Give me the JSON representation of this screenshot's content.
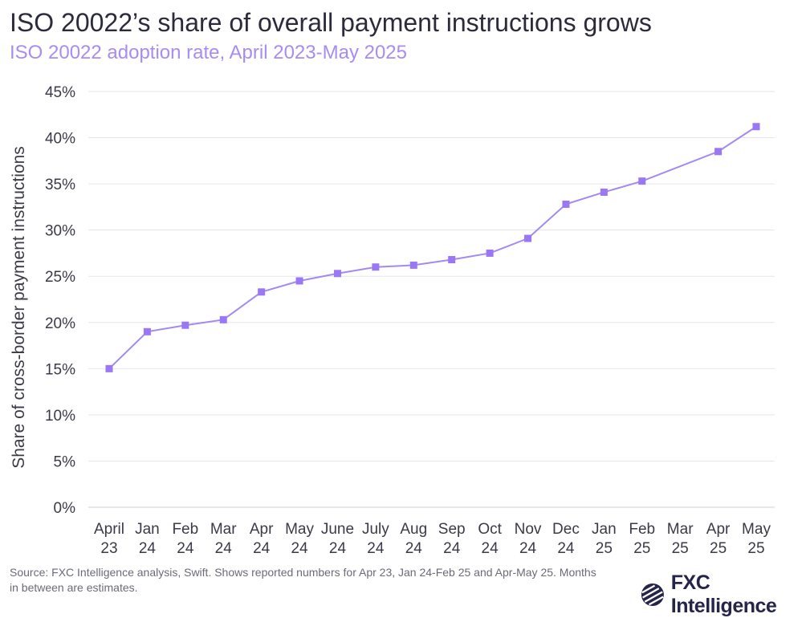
{
  "title": "ISO 20022’s share of overall payment instructions grows",
  "subtitle": "ISO 20022 adoption rate, April 2023-May 2025",
  "source": "Source: FXC Intelligence analysis, Swift. Shows reported numbers for Apr 23, Jan 24-Feb 25 and Apr-May 25. Months in between are estimates.",
  "logo": {
    "text": "FXC Intelligence",
    "icon": "fxc-globe-logo-icon"
  },
  "colors": {
    "line": "#a48af0",
    "marker": "#9a77f5",
    "grid": "#e6e6ea",
    "text": "#3a3a48"
  },
  "chart_data": {
    "type": "line",
    "ylabel": "Share of cross-border payment instructions",
    "xlabel": "",
    "ylim": [
      0,
      45
    ],
    "yticks": [
      "0%",
      "5%",
      "10%",
      "15%",
      "20%",
      "25%",
      "30%",
      "35%",
      "40%",
      "45%"
    ],
    "ytick_values": [
      0,
      5,
      10,
      15,
      20,
      25,
      30,
      35,
      40,
      45
    ],
    "grid": true,
    "categories": [
      [
        "April",
        "23"
      ],
      [
        "Jan",
        "24"
      ],
      [
        "Feb",
        "24"
      ],
      [
        "Mar",
        "24"
      ],
      [
        "Apr",
        "24"
      ],
      [
        "May",
        "24"
      ],
      [
        "June",
        "24"
      ],
      [
        "July",
        "24"
      ],
      [
        "Aug",
        "24"
      ],
      [
        "Sep",
        "24"
      ],
      [
        "Oct",
        "24"
      ],
      [
        "Nov",
        "24"
      ],
      [
        "Dec",
        "24"
      ],
      [
        "Jan",
        "25"
      ],
      [
        "Feb",
        "25"
      ],
      [
        "Mar",
        "25"
      ],
      [
        "Apr",
        "25"
      ],
      [
        "May",
        "25"
      ]
    ],
    "values": [
      15.0,
      19.0,
      19.7,
      20.3,
      23.3,
      24.5,
      25.3,
      26.0,
      26.2,
      26.8,
      27.5,
      29.1,
      32.8,
      34.1,
      35.3,
      null,
      38.5,
      41.2
    ]
  }
}
